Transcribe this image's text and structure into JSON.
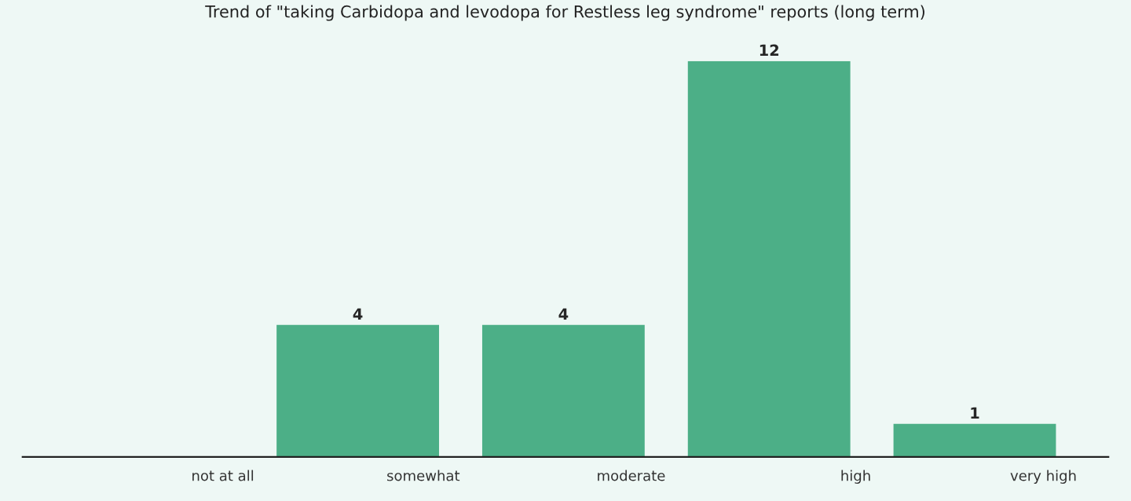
{
  "chart_data": {
    "type": "bar",
    "title": "Trend of \"taking Carbidopa and levodopa for Restless leg syndrome\" reports (long term)",
    "categories": [
      "not at all",
      "somewhat",
      "moderate",
      "high",
      "very high"
    ],
    "values": [
      0,
      4,
      4,
      12,
      1
    ],
    "value_labels": [
      null,
      "4",
      "4",
      "12",
      "1"
    ],
    "color": "#4caf87",
    "grid": false,
    "legend": false
  }
}
